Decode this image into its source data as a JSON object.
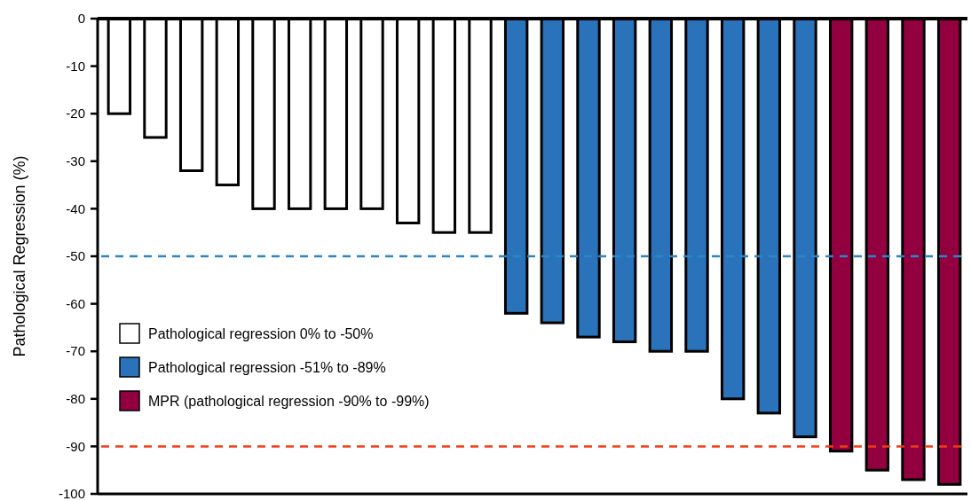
{
  "chart_data": {
    "type": "bar",
    "ylabel": "Pathological Regression (%)",
    "categories": [
      null,
      null,
      null,
      null,
      null,
      null,
      null,
      null,
      null,
      null,
      null,
      null,
      null,
      null,
      null,
      null,
      null,
      null,
      null,
      null,
      null,
      null,
      null,
      null
    ],
    "series": [
      {
        "name": "Pathological regression 0% to -50%",
        "color": "#ffffff",
        "values": [
          -20,
          -25,
          -32,
          -35,
          -40,
          -40,
          -40,
          -40,
          -43,
          -45,
          -45,
          null,
          null,
          null,
          null,
          null,
          null,
          null,
          null,
          null,
          null,
          null,
          null,
          null
        ]
      },
      {
        "name": "Pathological regression -51% to -89%",
        "color": "#2a72ba",
        "values": [
          null,
          null,
          null,
          null,
          null,
          null,
          null,
          null,
          null,
          null,
          null,
          -62,
          -64,
          -67,
          -68,
          -70,
          -70,
          -80,
          -83,
          -88,
          null,
          null,
          null,
          null
        ]
      },
      {
        "name": "MPR (pathological regression -90% to -99%)",
        "color": "#930040",
        "values": [
          null,
          null,
          null,
          null,
          null,
          null,
          null,
          null,
          null,
          null,
          null,
          null,
          null,
          null,
          null,
          null,
          null,
          null,
          null,
          null,
          -91,
          -95,
          -97,
          -98
        ]
      }
    ],
    "ylim": [
      -100,
      0
    ],
    "yticks": [
      0,
      -10,
      -20,
      -30,
      -40,
      -50,
      -60,
      -70,
      -80,
      -90,
      -100
    ],
    "ref_lines": [
      {
        "axis": "y",
        "value": -50,
        "color": "#2b86c8",
        "line_style": "dashed"
      },
      {
        "axis": "y",
        "value": -90,
        "color": "#f03c14",
        "line_style": "dashed"
      }
    ],
    "legend": "left",
    "grid": false
  }
}
